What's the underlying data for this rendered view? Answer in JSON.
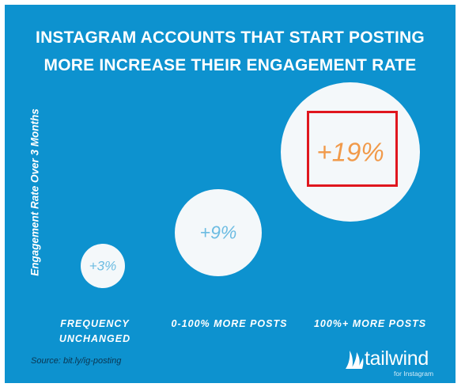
{
  "chart_data": {
    "type": "bubble",
    "title": "INSTAGRAM ACCOUNTS THAT START POSTING MORE INCREASE THEIR ENGAGEMENT RATE",
    "title_lines": [
      "INSTAGRAM ACCOUNTS THAT START POSTING",
      "MORE INCREASE THEIR ENGAGEMENT RATE"
    ],
    "ylabel": "Engagement Rate Over 3 Months",
    "xlabel": "",
    "categories": [
      "FREQUENCY UNCHANGED",
      "0-100% MORE POSTS",
      "100%+ MORE POSTS"
    ],
    "category_lines": [
      [
        "FREQUENCY",
        "UNCHANGED"
      ],
      [
        "0-100% MORE POSTS"
      ],
      [
        "100%+ MORE POSTS"
      ]
    ],
    "values": [
      3,
      9,
      19
    ],
    "unit": "%",
    "data_labels": [
      "+3%",
      "+9%",
      "+19%"
    ],
    "highlighted": "100%+ MORE POSTS",
    "legend": "none",
    "grid": false
  },
  "source": "Source: bit.ly/ig-posting",
  "brand": {
    "name": "tailwind",
    "sub": "for Instagram",
    "icon": "tailwind-logo-icon"
  },
  "colors": {
    "background": "#0d92cf",
    "bubble": "#f4f8fa",
    "label_small": "#6cbce2",
    "label_highlight": "#f19a4a",
    "highlight_border": "#e0171e"
  }
}
